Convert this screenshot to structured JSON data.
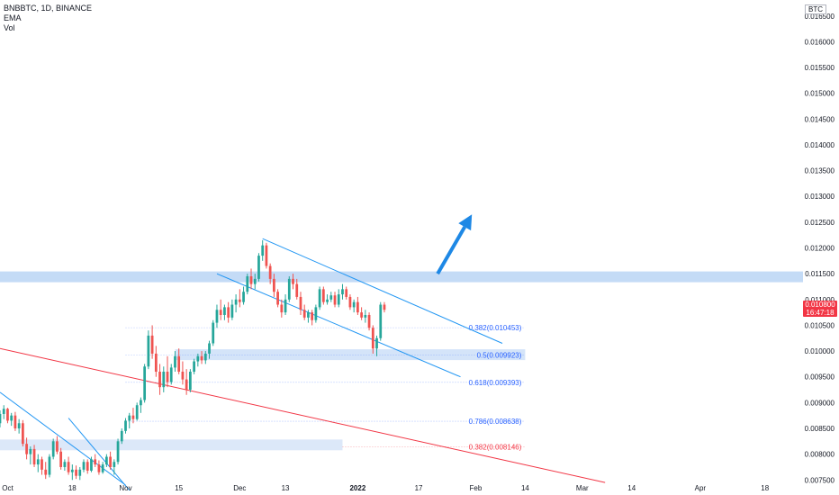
{
  "header": {
    "symbol_line": "BNBBTC, 1D, BINANCE",
    "indicators": [
      "EMA",
      "Vol"
    ]
  },
  "currency_label": "BTC",
  "last_price": {
    "value": "0.010800",
    "countdown": "16:47:18"
  },
  "chart_data": {
    "type": "candlestick",
    "title": "BNBBTC, 1D, BINANCE",
    "y_axis": {
      "side": "right",
      "ylim": [
        0.00747,
        0.01681
      ],
      "tick_labels": [
        "0.016500",
        "0.016000",
        "0.015500",
        "0.015000",
        "0.014500",
        "0.014000",
        "0.013500",
        "0.013000",
        "0.012500",
        "0.012000",
        "0.011500",
        "0.011000",
        "0.010500",
        "0.010000",
        "0.009500",
        "0.009000",
        "0.008500",
        "0.008000",
        "0.007500"
      ]
    },
    "x_axis": {
      "date_range": [
        "2021-09-29",
        "2022-04-28"
      ],
      "tick_labels": [
        {
          "date": "2021-10-01",
          "label": "Oct"
        },
        {
          "date": "2021-10-18",
          "label": "18"
        },
        {
          "date": "2021-11-01",
          "label": "Nov"
        },
        {
          "date": "2021-11-15",
          "label": "15"
        },
        {
          "date": "2021-12-01",
          "label": "Dec"
        },
        {
          "date": "2021-12-13",
          "label": "13"
        },
        {
          "date": "2022-01-01",
          "label": "2022",
          "bold": true
        },
        {
          "date": "2022-01-17",
          "label": "17"
        },
        {
          "date": "2022-02-01",
          "label": "Feb"
        },
        {
          "date": "2022-02-14",
          "label": "14"
        },
        {
          "date": "2022-03-01",
          "label": "Mar"
        },
        {
          "date": "2022-03-14",
          "label": "14"
        },
        {
          "date": "2022-04-01",
          "label": "Apr"
        },
        {
          "date": "2022-04-18",
          "label": "18"
        }
      ]
    },
    "candles": [
      [
        "2021-09-29",
        0.0086,
        0.00885,
        0.00852,
        0.00878
      ],
      [
        "2021-09-30",
        0.00878,
        0.00895,
        0.00868,
        0.00888
      ],
      [
        "2021-10-01",
        0.00888,
        0.0089,
        0.0086,
        0.00865
      ],
      [
        "2021-10-02",
        0.00865,
        0.0088,
        0.00855,
        0.00875
      ],
      [
        "2021-10-03",
        0.00875,
        0.00882,
        0.00845,
        0.0085
      ],
      [
        "2021-10-04",
        0.0085,
        0.00868,
        0.0084,
        0.0086
      ],
      [
        "2021-10-05",
        0.0086,
        0.00866,
        0.00815,
        0.0082
      ],
      [
        "2021-10-06",
        0.0082,
        0.00832,
        0.0079,
        0.008
      ],
      [
        "2021-10-07",
        0.008,
        0.00815,
        0.0078,
        0.0081
      ],
      [
        "2021-10-08",
        0.0081,
        0.00818,
        0.00775,
        0.0078
      ],
      [
        "2021-10-09",
        0.0078,
        0.008,
        0.00765,
        0.0079
      ],
      [
        "2021-10-10",
        0.0079,
        0.00795,
        0.0076,
        0.0077
      ],
      [
        "2021-10-11",
        0.0077,
        0.00785,
        0.00752,
        0.0076
      ],
      [
        "2021-10-12",
        0.0076,
        0.008,
        0.00755,
        0.00795
      ],
      [
        "2021-10-13",
        0.00795,
        0.0083,
        0.0079,
        0.00825
      ],
      [
        "2021-10-14",
        0.00825,
        0.00835,
        0.008,
        0.00805
      ],
      [
        "2021-10-15",
        0.00805,
        0.00812,
        0.0077,
        0.00775
      ],
      [
        "2021-10-16",
        0.00775,
        0.0079,
        0.00768,
        0.00785
      ],
      [
        "2021-10-17",
        0.00785,
        0.00795,
        0.0076,
        0.00765
      ],
      [
        "2021-10-18",
        0.00765,
        0.0078,
        0.0075,
        0.0077
      ],
      [
        "2021-10-19",
        0.0077,
        0.00778,
        0.00752,
        0.00758
      ],
      [
        "2021-10-20",
        0.00758,
        0.00775,
        0.0075,
        0.0077
      ],
      [
        "2021-10-21",
        0.0077,
        0.0079,
        0.00765,
        0.00785
      ],
      [
        "2021-10-22",
        0.00785,
        0.0079,
        0.00762,
        0.00768
      ],
      [
        "2021-10-23",
        0.00768,
        0.00795,
        0.00765,
        0.0079
      ],
      [
        "2021-10-24",
        0.0079,
        0.008,
        0.00775,
        0.0078
      ],
      [
        "2021-10-25",
        0.0078,
        0.00788,
        0.0076,
        0.00765
      ],
      [
        "2021-10-26",
        0.00765,
        0.00785,
        0.00762,
        0.0078
      ],
      [
        "2021-10-27",
        0.0078,
        0.008,
        0.00775,
        0.00795
      ],
      [
        "2021-10-28",
        0.00795,
        0.00805,
        0.0077,
        0.00775
      ],
      [
        "2021-10-29",
        0.00775,
        0.0079,
        0.0076,
        0.00785
      ],
      [
        "2021-10-30",
        0.00785,
        0.0083,
        0.0078,
        0.00825
      ],
      [
        "2021-10-31",
        0.00825,
        0.0085,
        0.0082,
        0.00845
      ],
      [
        "2021-11-01",
        0.00845,
        0.0087,
        0.0084,
        0.00865
      ],
      [
        "2021-11-02",
        0.00865,
        0.0088,
        0.0085,
        0.00875
      ],
      [
        "2021-11-03",
        0.00875,
        0.0089,
        0.0086,
        0.00868
      ],
      [
        "2021-11-04",
        0.00868,
        0.009,
        0.00865,
        0.00895
      ],
      [
        "2021-11-05",
        0.00895,
        0.0091,
        0.0088,
        0.00905
      ],
      [
        "2021-11-06",
        0.00905,
        0.00975,
        0.009,
        0.0097
      ],
      [
        "2021-11-07",
        0.0097,
        0.0104,
        0.00965,
        0.0103
      ],
      [
        "2021-11-08",
        0.0103,
        0.0105,
        0.00985,
        0.00995
      ],
      [
        "2021-11-09",
        0.00995,
        0.0101,
        0.0095,
        0.0096
      ],
      [
        "2021-11-10",
        0.0096,
        0.00975,
        0.00915,
        0.0093
      ],
      [
        "2021-11-11",
        0.0093,
        0.0097,
        0.0092,
        0.0096
      ],
      [
        "2021-11-12",
        0.0096,
        0.0099,
        0.0093,
        0.0094
      ],
      [
        "2021-11-13",
        0.0094,
        0.00975,
        0.00935,
        0.00968
      ],
      [
        "2021-11-14",
        0.00968,
        0.01,
        0.0096,
        0.0099
      ],
      [
        "2021-11-15",
        0.0099,
        0.01005,
        0.00955,
        0.0096
      ],
      [
        "2021-11-16",
        0.0096,
        0.0098,
        0.00935,
        0.00945
      ],
      [
        "2021-11-17",
        0.00945,
        0.00965,
        0.00915,
        0.00925
      ],
      [
        "2021-11-18",
        0.00925,
        0.00965,
        0.0092,
        0.0096
      ],
      [
        "2021-11-19",
        0.0096,
        0.00985,
        0.00955,
        0.0098
      ],
      [
        "2021-11-20",
        0.0098,
        0.00995,
        0.0097,
        0.0099
      ],
      [
        "2021-11-21",
        0.0099,
        0.01,
        0.00975,
        0.00982
      ],
      [
        "2021-11-22",
        0.00982,
        0.01,
        0.00975,
        0.00995
      ],
      [
        "2021-11-23",
        0.00995,
        0.0102,
        0.00985,
        0.01015
      ],
      [
        "2021-11-24",
        0.01015,
        0.0106,
        0.0101,
        0.01055
      ],
      [
        "2021-11-25",
        0.01055,
        0.0109,
        0.01045,
        0.0108
      ],
      [
        "2021-11-26",
        0.0108,
        0.011,
        0.0106,
        0.0107
      ],
      [
        "2021-11-27",
        0.0107,
        0.0109,
        0.0106,
        0.01085
      ],
      [
        "2021-11-28",
        0.01085,
        0.01095,
        0.01055,
        0.01065
      ],
      [
        "2021-11-29",
        0.01065,
        0.011,
        0.0106,
        0.0109
      ],
      [
        "2021-11-30",
        0.0109,
        0.0111,
        0.01075,
        0.011
      ],
      [
        "2021-12-01",
        0.011,
        0.0112,
        0.01085,
        0.01095
      ],
      [
        "2021-12-02",
        0.01095,
        0.01125,
        0.0109,
        0.01115
      ],
      [
        "2021-12-03",
        0.01115,
        0.0115,
        0.0111,
        0.01145
      ],
      [
        "2021-12-04",
        0.01145,
        0.0116,
        0.0112,
        0.0113
      ],
      [
        "2021-12-05",
        0.0113,
        0.0115,
        0.0112,
        0.0114
      ],
      [
        "2021-12-06",
        0.0114,
        0.0119,
        0.01135,
        0.01185
      ],
      [
        "2021-12-07",
        0.01185,
        0.01215,
        0.01175,
        0.01205
      ],
      [
        "2021-12-08",
        0.01205,
        0.0121,
        0.0116,
        0.01165
      ],
      [
        "2021-12-09",
        0.01165,
        0.0117,
        0.0113,
        0.0114
      ],
      [
        "2021-12-10",
        0.0114,
        0.0115,
        0.01105,
        0.01115
      ],
      [
        "2021-12-11",
        0.01115,
        0.0112,
        0.01085,
        0.0109
      ],
      [
        "2021-12-12",
        0.0109,
        0.011,
        0.01065,
        0.01075
      ],
      [
        "2021-12-13",
        0.01075,
        0.0111,
        0.0107,
        0.011
      ],
      [
        "2021-12-14",
        0.011,
        0.01145,
        0.01095,
        0.0114
      ],
      [
        "2021-12-15",
        0.0114,
        0.0115,
        0.0112,
        0.0113
      ],
      [
        "2021-12-16",
        0.0113,
        0.0114,
        0.011,
        0.01105
      ],
      [
        "2021-12-17",
        0.01105,
        0.01115,
        0.0107,
        0.0108
      ],
      [
        "2021-12-18",
        0.0108,
        0.0109,
        0.0106,
        0.01065
      ],
      [
        "2021-12-19",
        0.01065,
        0.0108,
        0.01055,
        0.01075
      ],
      [
        "2021-12-20",
        0.01075,
        0.0108,
        0.0105,
        0.0106
      ],
      [
        "2021-12-21",
        0.0106,
        0.0109,
        0.01055,
        0.01085
      ],
      [
        "2021-12-22",
        0.01085,
        0.01125,
        0.0108,
        0.0112
      ],
      [
        "2021-12-23",
        0.0112,
        0.01125,
        0.0109,
        0.01095
      ],
      [
        "2021-12-24",
        0.01095,
        0.0111,
        0.0109,
        0.011
      ],
      [
        "2021-12-25",
        0.011,
        0.01115,
        0.01095,
        0.01108
      ],
      [
        "2021-12-26",
        0.01108,
        0.01115,
        0.01085,
        0.0109
      ],
      [
        "2021-12-27",
        0.0109,
        0.0112,
        0.01085,
        0.0111
      ],
      [
        "2021-12-28",
        0.0111,
        0.0113,
        0.011,
        0.0112
      ],
      [
        "2021-12-29",
        0.0112,
        0.01125,
        0.011,
        0.01105
      ],
      [
        "2021-12-30",
        0.01105,
        0.0111,
        0.0108,
        0.01085
      ],
      [
        "2021-12-31",
        0.01085,
        0.011,
        0.01075,
        0.01095
      ],
      [
        "2022-01-01",
        0.01095,
        0.01105,
        0.0107,
        0.01075
      ],
      [
        "2022-01-02",
        0.01075,
        0.01085,
        0.0106,
        0.01065
      ],
      [
        "2022-01-03",
        0.01065,
        0.0108,
        0.01055,
        0.0107
      ],
      [
        "2022-01-04",
        0.0107,
        0.01075,
        0.0104,
        0.01045
      ],
      [
        "2022-01-05",
        0.01045,
        0.0105,
        0.00995,
        0.01005
      ],
      [
        "2022-01-06",
        0.01005,
        0.0103,
        0.0099,
        0.01025
      ],
      [
        "2022-01-07",
        0.01025,
        0.01095,
        0.0102,
        0.0109
      ],
      [
        "2022-01-08",
        0.0109,
        0.01095,
        0.01075,
        0.0108
      ]
    ],
    "annotations": {
      "horizontal_zones": [
        {
          "price": 0.01144,
          "from": "2021-09-29",
          "to": "2022-04-28",
          "color": "#9cc3f0"
        },
        {
          "price": 0.00993,
          "from": "2021-11-14",
          "to": "2022-02-14",
          "color": "#b7d2f5"
        },
        {
          "price": 0.00818,
          "from": "2021-09-29",
          "to": "2021-12-28",
          "color": "#c5d9f5"
        }
      ],
      "fibonacci_levels": [
        {
          "label": "0.382(0.010453)",
          "price": 0.010453,
          "from": "2021-11-01",
          "to": "2022-02-14",
          "color": "#2962ff"
        },
        {
          "label": "0.5(0.009923)",
          "price": 0.009923,
          "from": "2021-11-01",
          "to": "2022-02-14",
          "color": "#2962ff"
        },
        {
          "label": "0.618(0.009393)",
          "price": 0.009393,
          "from": "2021-11-01",
          "to": "2022-02-14",
          "color": "#2962ff"
        },
        {
          "label": "0.786(0.008638)",
          "price": 0.008638,
          "from": "2021-11-01",
          "to": "2022-02-14",
          "color": "#2962ff"
        },
        {
          "label": "0.382(0.008146)",
          "price": 0.008146,
          "from": "2021-12-28",
          "to": "2022-02-14",
          "color": "#f23645"
        }
      ],
      "trend_lines": [
        {
          "from": [
            "2021-09-29",
            0.0092
          ],
          "to": [
            "2021-11-01",
            0.0074
          ],
          "color": "#2196f3"
        },
        {
          "from": [
            "2021-10-17",
            0.0087
          ],
          "to": [
            "2021-11-02",
            0.0073
          ],
          "color": "#2196f3"
        },
        {
          "from": [
            "2021-12-07",
            0.01218
          ],
          "to": [
            "2022-02-08",
            0.01015
          ],
          "color": "#2196f3"
        },
        {
          "from": [
            "2021-11-25",
            0.0115
          ],
          "to": [
            "2022-01-28",
            0.0095
          ],
          "color": "#2196f3"
        },
        {
          "from": [
            "2021-09-29",
            0.01005
          ],
          "to": [
            "2022-03-07",
            0.00745
          ],
          "color": "#f23645"
        }
      ],
      "arrow": {
        "from": [
          "2022-01-22",
          0.0115
        ],
        "to": [
          "2022-01-31",
          0.01265
        ],
        "color": "#1e88e5"
      }
    },
    "colors": {
      "up": "#26a69a",
      "down": "#ef5350",
      "grid": "#e0e3eb"
    },
    "grid": false,
    "legend": "top-left"
  }
}
